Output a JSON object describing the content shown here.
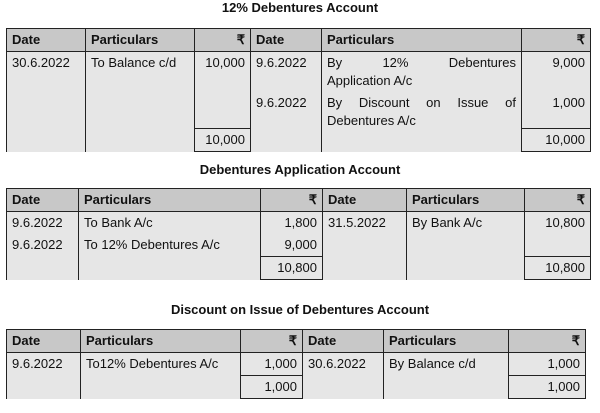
{
  "currency_symbol": "₹",
  "headers": {
    "date": "Date",
    "particulars": "Particulars"
  },
  "accounts": [
    {
      "title": "12% Debentures Account",
      "debit": [
        {
          "date": "30.6.2022",
          "particulars": "To Balance c/d",
          "amount": "10,000"
        }
      ],
      "debit_total": "10,000",
      "credit": [
        {
          "date": "9.6.2022",
          "particulars_words": [
            "By",
            "12%",
            "Debentures"
          ],
          "particulars_rest": "Application A/c",
          "amount": "9,000"
        },
        {
          "date": "9.6.2022",
          "particulars_words": [
            "By",
            "Discount",
            "on",
            "Issue",
            "of"
          ],
          "particulars_rest": "Debentures A/c",
          "amount": "1,000"
        }
      ],
      "credit_total": "10,000"
    },
    {
      "title": "Debentures Application Account",
      "debit": [
        {
          "date": "9.6.2022",
          "particulars": "To Bank A/c",
          "amount": "1,800"
        },
        {
          "date": "9.6.2022",
          "particulars": "To 12% Debentures A/c",
          "amount": "9,000"
        }
      ],
      "debit_total": "10,800",
      "credit": [
        {
          "date": "31.5.2022",
          "particulars": "By Bank A/c",
          "amount": "10,800"
        }
      ],
      "credit_total": "10,800"
    },
    {
      "title": "Discount on Issue of Debentures Account",
      "debit": [
        {
          "date": "9.6.2022",
          "particulars": "To12% Debentures A/c",
          "amount": "1,000"
        }
      ],
      "debit_total": "1,000",
      "credit": [
        {
          "date": "30.6.2022",
          "particulars": "By Balance c/d",
          "amount": "1,000"
        }
      ],
      "credit_total": "1,000"
    }
  ]
}
